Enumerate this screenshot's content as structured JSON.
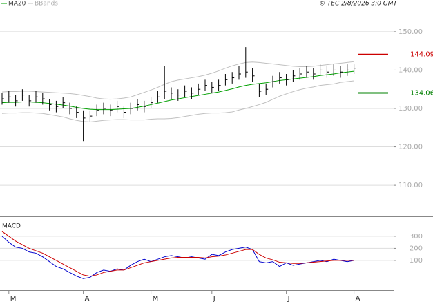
{
  "header": {
    "credit": "© TEC 2/8/2026 3:0 GMT"
  },
  "chart_data": [
    {
      "type": "ohlc",
      "categories": [
        null,
        "M",
        null,
        null,
        null,
        null,
        null,
        null,
        null,
        null,
        null,
        null,
        "A",
        null,
        null,
        null,
        null,
        null,
        null,
        null,
        null,
        null,
        "M",
        null,
        null,
        null,
        null,
        null,
        null,
        null,
        null,
        "J",
        null,
        null,
        null,
        null,
        null,
        null,
        null,
        null,
        null,
        null,
        "J",
        null,
        null,
        null,
        null,
        null,
        null,
        null,
        null,
        null,
        "A"
      ],
      "closes": [
        132.5,
        133,
        132,
        133.5,
        132,
        133,
        132.5,
        131,
        130.5,
        131.5,
        130,
        129,
        127.5,
        128,
        129.5,
        130,
        129.5,
        130.5,
        129,
        130,
        131,
        130.5,
        131.5,
        133,
        134.5,
        134,
        133.5,
        134.5,
        134,
        135,
        136,
        135.5,
        136,
        137.5,
        138,
        139,
        139.5,
        138.5,
        134.5,
        135,
        137,
        138,
        137.5,
        138.5,
        139,
        139.5,
        139,
        140,
        139.5,
        140,
        139.5,
        140,
        140.5
      ],
      "highs": [
        134,
        134.5,
        133.5,
        135,
        133.5,
        134.5,
        134,
        132.5,
        132,
        133,
        131.5,
        130.5,
        129.5,
        129.5,
        131,
        131.5,
        131,
        132,
        130.5,
        131.5,
        132.5,
        132,
        133,
        134.5,
        141,
        135.5,
        135,
        136,
        135.5,
        136.5,
        137.5,
        137,
        137.5,
        139,
        139.5,
        141,
        146,
        140.5,
        136.5,
        136.5,
        138.5,
        139.5,
        139,
        140,
        140.5,
        141,
        140.5,
        141.5,
        141,
        141.5,
        141,
        141.5,
        141.5
      ],
      "lows": [
        131,
        131.5,
        130.5,
        132,
        130.5,
        131.5,
        131,
        129.5,
        129,
        130,
        128.5,
        127.5,
        121.5,
        126.5,
        128,
        128.5,
        128,
        129,
        127.5,
        128.5,
        129.5,
        129,
        130,
        131.5,
        132.5,
        132.5,
        132,
        133,
        132.5,
        133.5,
        134.5,
        134,
        134.5,
        136,
        136.5,
        137.5,
        138,
        137,
        133,
        133.5,
        135.5,
        136.5,
        136,
        137,
        137.5,
        138,
        137.5,
        138.5,
        138,
        138.5,
        138,
        138.5,
        139
      ],
      "series": [
        {
          "name": "MA20",
          "color": "#00a000",
          "values": [
            131.5,
            131.6,
            131.6,
            131.7,
            131.7,
            131.6,
            131.5,
            131.3,
            131.1,
            130.9,
            130.6,
            130.3,
            130,
            129.8,
            129.7,
            129.7,
            129.7,
            129.8,
            129.9,
            130,
            130.3,
            130.6,
            131,
            131.4,
            131.8,
            132.2,
            132.5,
            132.8,
            133.1,
            133.4,
            133.7,
            134,
            134.3,
            134.7,
            135.1,
            135.6,
            136,
            136.3,
            136.5,
            136.7,
            137,
            137.3,
            137.5,
            137.7,
            137.9,
            138.1,
            138.3,
            138.6,
            138.8,
            139,
            139.3,
            139.5,
            139.7
          ]
        }
      ],
      "bands": {
        "name": "BBands",
        "color": "#c0c0c0",
        "upper": [
          134.3,
          134.4,
          134.4,
          134.5,
          134.5,
          134.4,
          134.3,
          134.2,
          134.1,
          134,
          133.9,
          133.7,
          133.4,
          133.1,
          132.7,
          132.5,
          132.4,
          132.5,
          132.7,
          133,
          133.6,
          134.2,
          134.8,
          135.5,
          136.3,
          137,
          137.4,
          137.7,
          138,
          138.3,
          138.7,
          139.2,
          139.8,
          140.5,
          141.1,
          141.6,
          142,
          142.1,
          142,
          141.8,
          141.6,
          141.4,
          141.2,
          141,
          140.9,
          140.9,
          141,
          141.2,
          141.4,
          141.6,
          141.8,
          142,
          142.2
        ],
        "lower": [
          128.7,
          128.8,
          128.8,
          128.9,
          128.9,
          128.8,
          128.7,
          128.4,
          128.1,
          127.8,
          127.3,
          126.9,
          126.6,
          126.5,
          126.7,
          126.9,
          127,
          127.1,
          127.1,
          127,
          127,
          127,
          127.2,
          127.3,
          127.3,
          127.4,
          127.6,
          127.9,
          128.2,
          128.5,
          128.7,
          128.8,
          128.8,
          128.9,
          129.1,
          129.6,
          130,
          130.5,
          131,
          131.6,
          132.4,
          133.2,
          133.8,
          134.4,
          134.9,
          135.3,
          135.6,
          136,
          136.2,
          136.4,
          136.8,
          137,
          137.2
        ]
      },
      "ylim": [
        102.1,
        156.1
      ],
      "yticks": [
        {
          "value": 110,
          "label": "110.00"
        },
        {
          "value": 120,
          "label": "120.00"
        },
        {
          "value": 130,
          "label": "130.00"
        },
        {
          "value": 140,
          "label": "140.00"
        },
        {
          "value": 150,
          "label": "150.00"
        }
      ],
      "annotations": [
        {
          "value": 144.09,
          "label": "144.09",
          "color": "#cc0000"
        },
        {
          "value": 134.06,
          "label": "134.06",
          "color": "#008000"
        }
      ],
      "grid": true
    },
    {
      "type": "line",
      "title": "MACD",
      "series": [
        {
          "color": "#0000cc",
          "values": [
            300,
            250,
            210,
            200,
            170,
            160,
            130,
            90,
            50,
            30,
            0,
            -30,
            -50,
            -40,
            0,
            20,
            10,
            30,
            20,
            60,
            90,
            110,
            90,
            110,
            130,
            140,
            130,
            120,
            130,
            120,
            110,
            150,
            140,
            170,
            190,
            200,
            210,
            190,
            90,
            80,
            90,
            50,
            80,
            60,
            70,
            80,
            90,
            100,
            90,
            110,
            100,
            90,
            100
          ]
        },
        {
          "color": "#cc0000",
          "values": [
            340,
            300,
            260,
            230,
            200,
            180,
            160,
            130,
            100,
            70,
            40,
            10,
            -20,
            -30,
            -20,
            0,
            10,
            20,
            20,
            40,
            60,
            80,
            90,
            100,
            110,
            120,
            125,
            125,
            125,
            125,
            120,
            130,
            135,
            145,
            160,
            175,
            190,
            190,
            150,
            120,
            105,
            85,
            80,
            75,
            75,
            80,
            85,
            90,
            95,
            100,
            100,
            100,
            100
          ]
        }
      ],
      "ylim": [
        -146,
        448
      ],
      "yticks": [
        100,
        200,
        300
      ],
      "grid": true
    }
  ]
}
